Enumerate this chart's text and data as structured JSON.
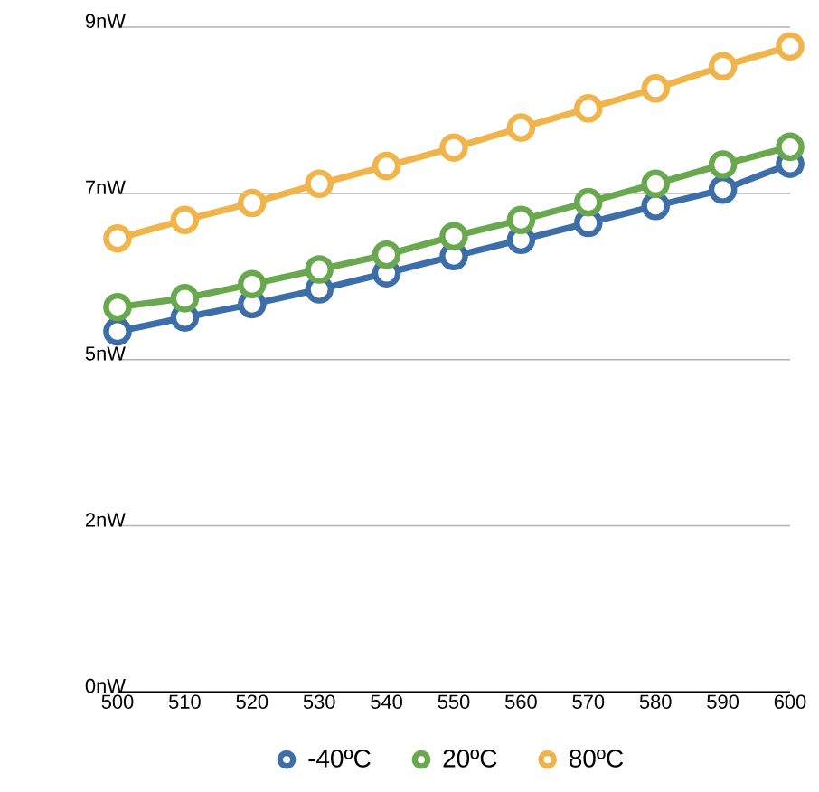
{
  "chart_data": {
    "type": "line",
    "x": [
      500,
      510,
      520,
      530,
      540,
      550,
      560,
      570,
      580,
      590,
      600
    ],
    "xlim": [
      500,
      600
    ],
    "xticks": [
      500,
      510,
      520,
      530,
      540,
      550,
      560,
      570,
      580,
      590,
      600
    ],
    "ylim": [
      0,
      9
    ],
    "yticks": [
      {
        "value": 0,
        "label": "0nW"
      },
      {
        "value": 2.25,
        "label": "2nW"
      },
      {
        "value": 4.5,
        "label": "5nW"
      },
      {
        "value": 6.75,
        "label": "7nW"
      },
      {
        "value": 9,
        "label": "9nW"
      }
    ],
    "grid": "y",
    "legend": "bottom",
    "marker": "circle",
    "line_style": "solid",
    "series": [
      {
        "name": "-40ºC",
        "color": "#3d6ea8",
        "values": [
          4.88,
          5.07,
          5.25,
          5.45,
          5.67,
          5.9,
          6.12,
          6.35,
          6.58,
          6.8,
          7.15
        ]
      },
      {
        "name": "20ºC",
        "color": "#6aa84f",
        "values": [
          5.21,
          5.33,
          5.52,
          5.72,
          5.92,
          6.17,
          6.39,
          6.63,
          6.88,
          7.14,
          7.38
        ]
      },
      {
        "name": "80ºC",
        "color": "#f0b44c",
        "values": [
          6.14,
          6.39,
          6.62,
          6.88,
          7.12,
          7.37,
          7.64,
          7.9,
          8.17,
          8.47,
          8.74
        ]
      }
    ]
  }
}
